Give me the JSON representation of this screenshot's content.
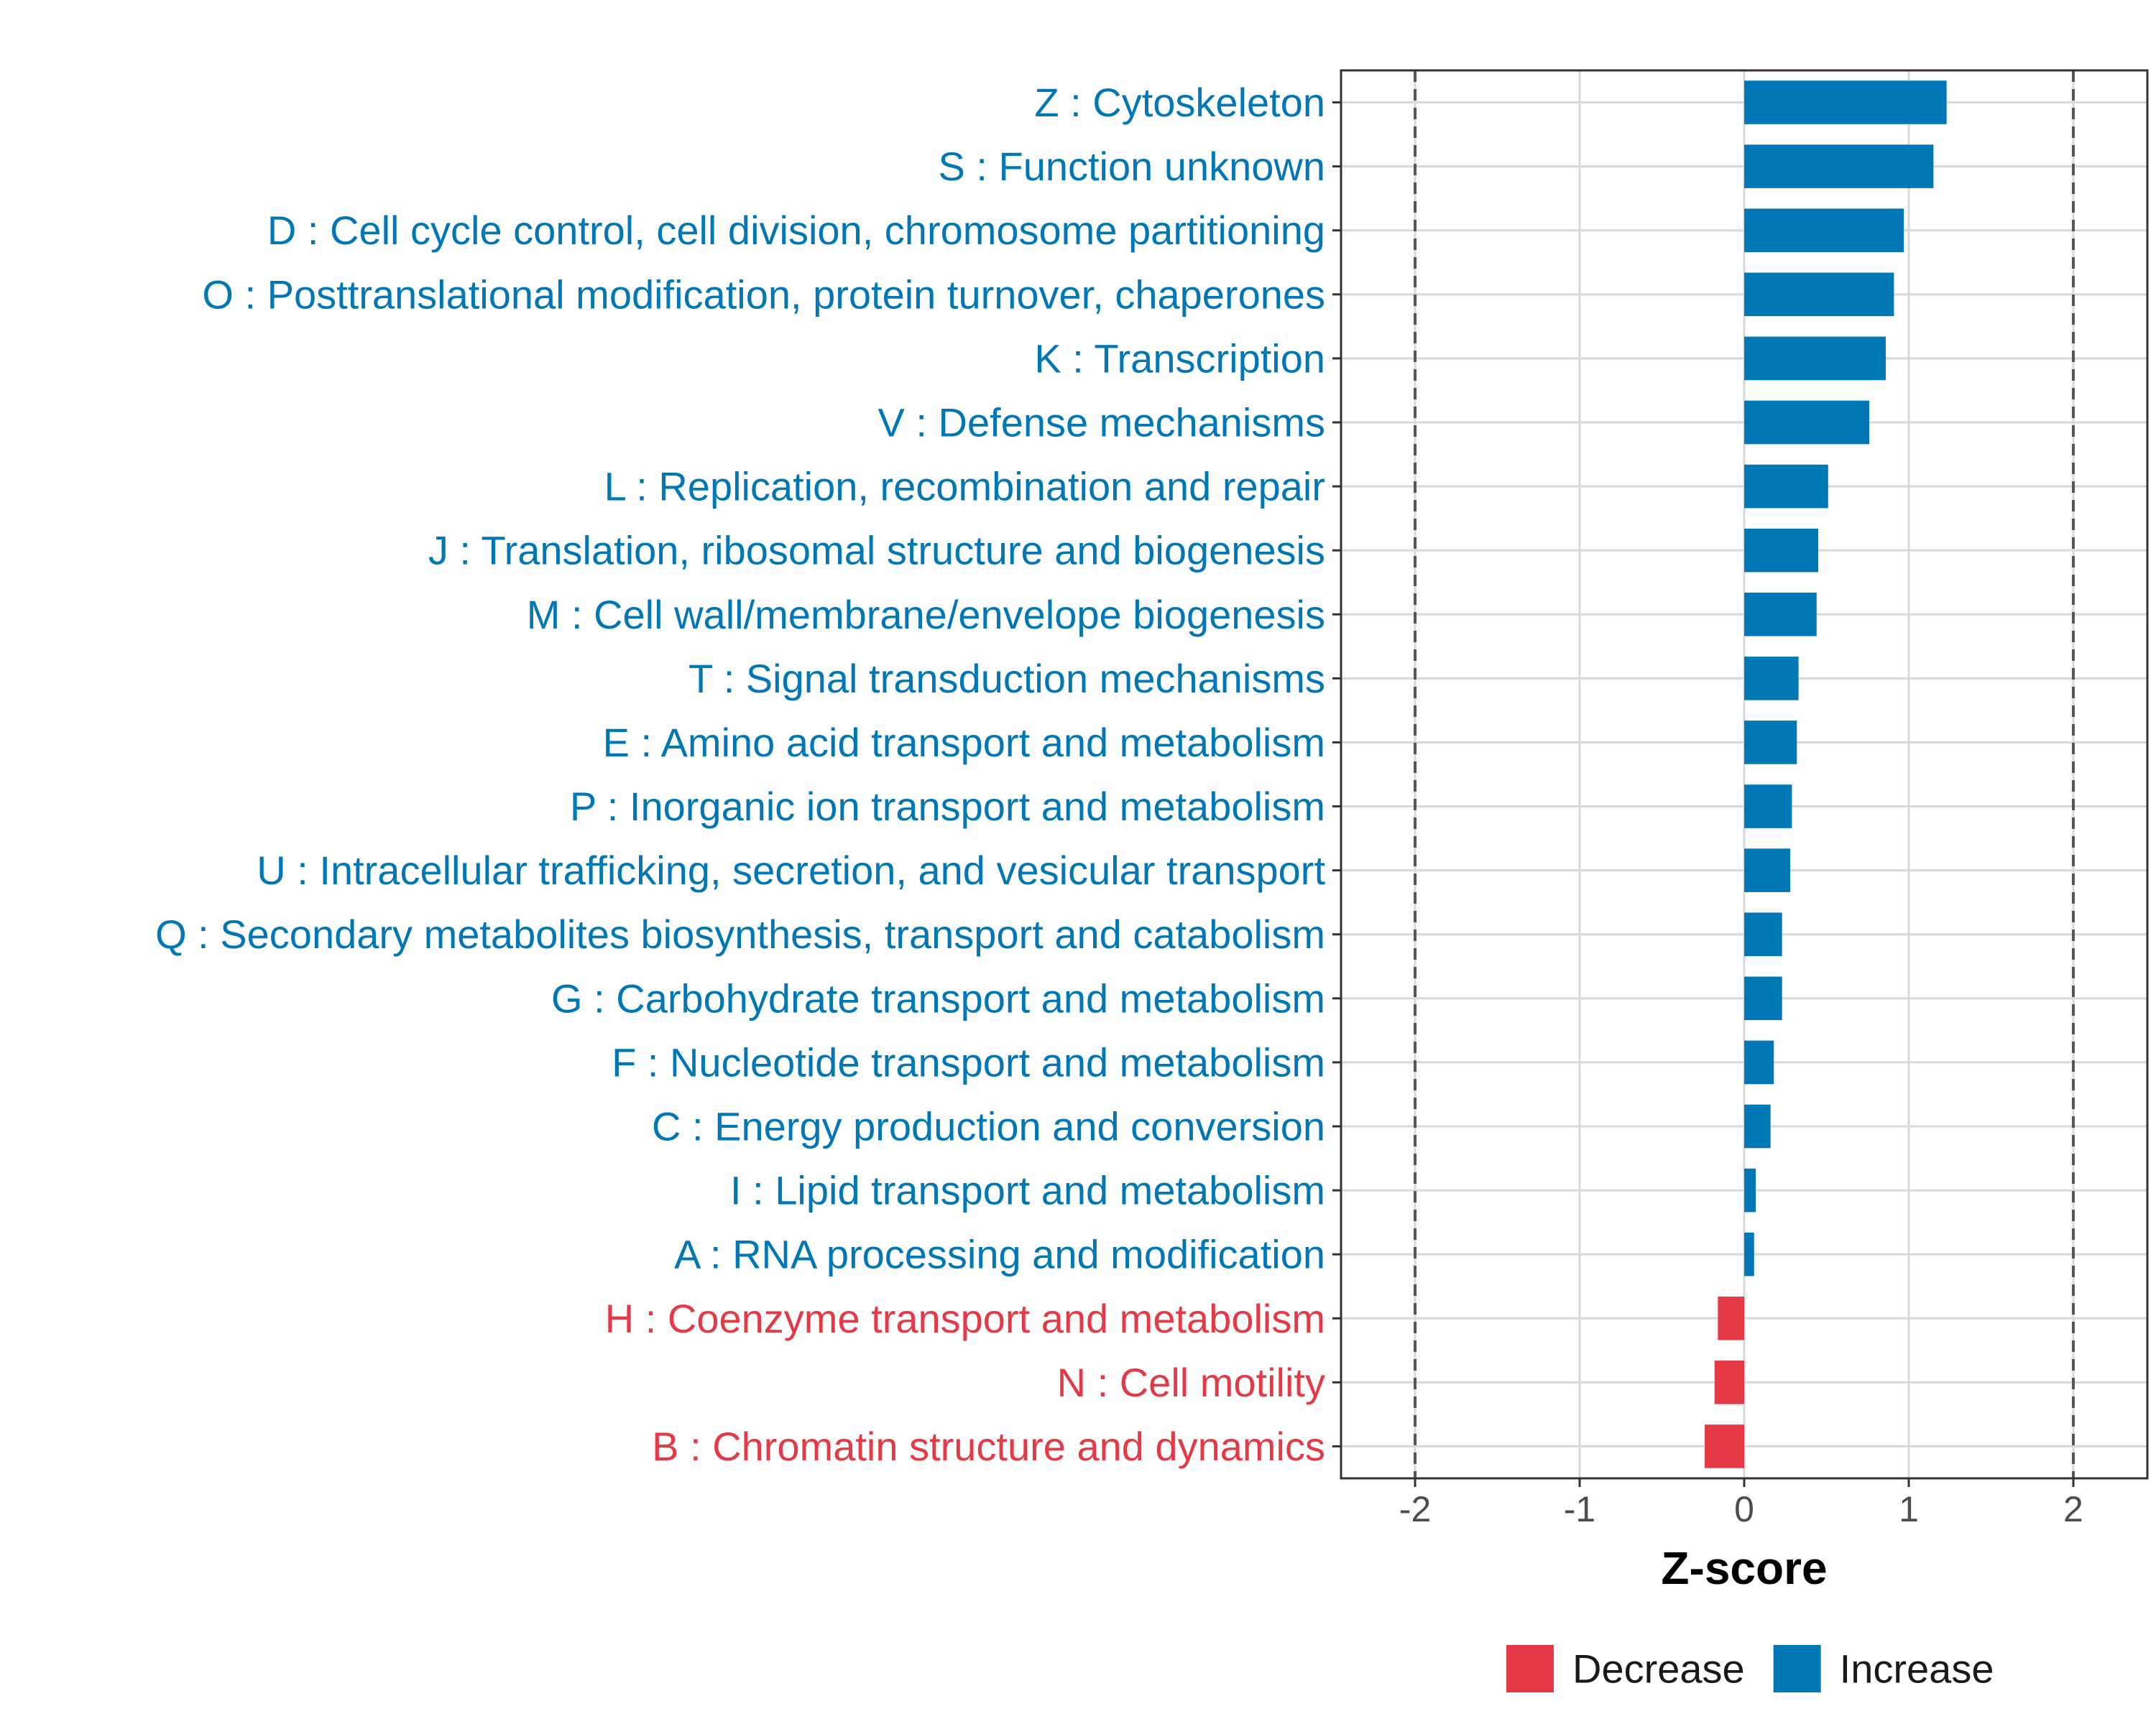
{
  "chart_data": {
    "type": "bar",
    "orientation": "horizontal",
    "title": "",
    "xlabel": "Z-score",
    "ylabel": "",
    "xlim": [
      -2.45,
      2.45
    ],
    "xticks": [
      -2,
      -1,
      0,
      1,
      2
    ],
    "xtick_labels": [
      "-2",
      "-1",
      "0",
      "1",
      "2"
    ],
    "reference_lines": [
      -2,
      2
    ],
    "grid": true,
    "legend": {
      "placement": "bottom",
      "entries": [
        {
          "label": "Decrease",
          "color": "#E63946"
        },
        {
          "label": "Increase",
          "color": "#0077B6"
        }
      ]
    },
    "categories": [
      {
        "label": "Z : Cytoskeleton",
        "value": 1.23,
        "direction": "Increase"
      },
      {
        "label": "S : Function unknown",
        "value": 1.15,
        "direction": "Increase"
      },
      {
        "label": "D : Cell cycle control, cell division, chromosome partitioning",
        "value": 0.97,
        "direction": "Increase"
      },
      {
        "label": "O : Posttranslational modification, protein turnover, chaperones",
        "value": 0.91,
        "direction": "Increase"
      },
      {
        "label": "K : Transcription",
        "value": 0.86,
        "direction": "Increase"
      },
      {
        "label": "V : Defense mechanisms",
        "value": 0.76,
        "direction": "Increase"
      },
      {
        "label": "L : Replication, recombination and repair",
        "value": 0.51,
        "direction": "Increase"
      },
      {
        "label": "J : Translation, ribosomal structure and biogenesis",
        "value": 0.45,
        "direction": "Increase"
      },
      {
        "label": "M : Cell wall/membrane/envelope biogenesis",
        "value": 0.44,
        "direction": "Increase"
      },
      {
        "label": "T : Signal transduction mechanisms",
        "value": 0.33,
        "direction": "Increase"
      },
      {
        "label": "E : Amino acid transport and metabolism",
        "value": 0.32,
        "direction": "Increase"
      },
      {
        "label": "P : Inorganic ion transport and metabolism",
        "value": 0.29,
        "direction": "Increase"
      },
      {
        "label": "U : Intracellular trafficking, secretion, and vesicular transport",
        "value": 0.28,
        "direction": "Increase"
      },
      {
        "label": "Q : Secondary metabolites biosynthesis, transport and catabolism",
        "value": 0.23,
        "direction": "Increase"
      },
      {
        "label": "G : Carbohydrate transport and metabolism",
        "value": 0.23,
        "direction": "Increase"
      },
      {
        "label": "F : Nucleotide transport and metabolism",
        "value": 0.18,
        "direction": "Increase"
      },
      {
        "label": "C : Energy production and conversion",
        "value": 0.16,
        "direction": "Increase"
      },
      {
        "label": "I : Lipid transport and metabolism",
        "value": 0.07,
        "direction": "Increase"
      },
      {
        "label": "A : RNA processing and modification",
        "value": 0.06,
        "direction": "Increase"
      },
      {
        "label": "H : Coenzyme transport and metabolism",
        "value": -0.16,
        "direction": "Decrease"
      },
      {
        "label": "N : Cell motility",
        "value": -0.18,
        "direction": "Decrease"
      },
      {
        "label": "B : Chromatin structure and dynamics",
        "value": -0.24,
        "direction": "Decrease"
      }
    ]
  }
}
